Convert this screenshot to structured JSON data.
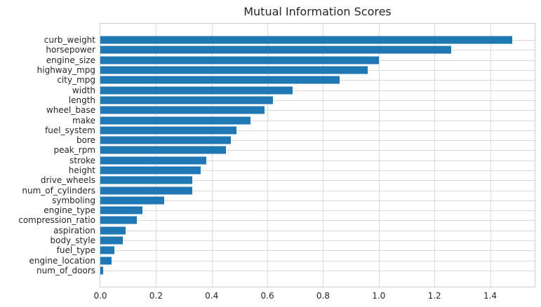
{
  "title": "Mutual Information Scores",
  "colors": {
    "bar": "#1f77b4",
    "grid": "#d9d9d9",
    "spine": "#cccccc",
    "text": "#262626",
    "background": "#ffffff"
  },
  "chart_data": {
    "type": "bar",
    "orientation": "horizontal",
    "title": "Mutual Information Scores",
    "categories": [
      "curb_weight",
      "horsepower",
      "engine_size",
      "highway_mpg",
      "city_mpg",
      "width",
      "length",
      "wheel_base",
      "make",
      "fuel_system",
      "bore",
      "peak_rpm",
      "stroke",
      "height",
      "drive_wheels",
      "num_of_cylinders",
      "symboling",
      "engine_type",
      "compression_ratio",
      "aspiration",
      "body_style",
      "fuel_type",
      "engine_location",
      "num_of_doors"
    ],
    "values": [
      1.48,
      1.26,
      1.0,
      0.96,
      0.86,
      0.69,
      0.62,
      0.59,
      0.54,
      0.49,
      0.47,
      0.45,
      0.38,
      0.36,
      0.33,
      0.33,
      0.23,
      0.15,
      0.13,
      0.09,
      0.08,
      0.05,
      0.04,
      0.01
    ],
    "xlabel": "",
    "ylabel": "",
    "xlim": [
      0,
      1.56
    ],
    "xticks": [
      "0.0",
      "0.2",
      "0.4",
      "0.6",
      "0.8",
      "1.0",
      "1.2",
      "1.4"
    ],
    "grid": true,
    "legend": false,
    "bar_color": "#1f77b4"
  }
}
